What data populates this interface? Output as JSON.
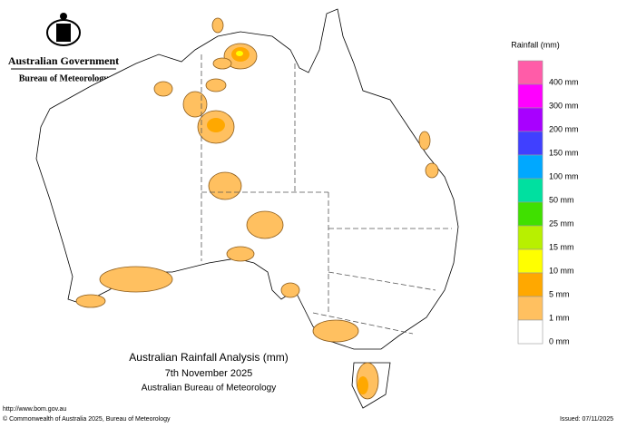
{
  "header": {
    "title": "Australian Government",
    "subtitle": "Bureau of Meteorology"
  },
  "legend": {
    "title": "Rainfall (mm)",
    "items": [
      {
        "label": "400 mm",
        "color": "#ff5ca8"
      },
      {
        "label": "300 mm",
        "color": "#ff00ff"
      },
      {
        "label": "200 mm",
        "color": "#a800ff"
      },
      {
        "label": "150 mm",
        "color": "#4040ff"
      },
      {
        "label": "100 mm",
        "color": "#00a8ff"
      },
      {
        "label": "50 mm",
        "color": "#00e0a0"
      },
      {
        "label": "25 mm",
        "color": "#40e000"
      },
      {
        "label": "15 mm",
        "color": "#b8f000"
      },
      {
        "label": "10 mm",
        "color": "#ffff00"
      },
      {
        "label": "5 mm",
        "color": "#ffa800"
      },
      {
        "label": "1 mm",
        "color": "#ffc060"
      },
      {
        "label": "0 mm",
        "color": "#ffffff"
      }
    ]
  },
  "map_title": {
    "line1": "Australian Rainfall Analysis (mm)",
    "line2": "7th November 2025",
    "line3": "Australian Bureau of Meteorology"
  },
  "footer": {
    "url": "http://www.bom.gov.au",
    "copyright": "© Commonwealth of Australia 2025, Bureau of Meteorology",
    "issued": "Issued: 07/11/2025"
  }
}
